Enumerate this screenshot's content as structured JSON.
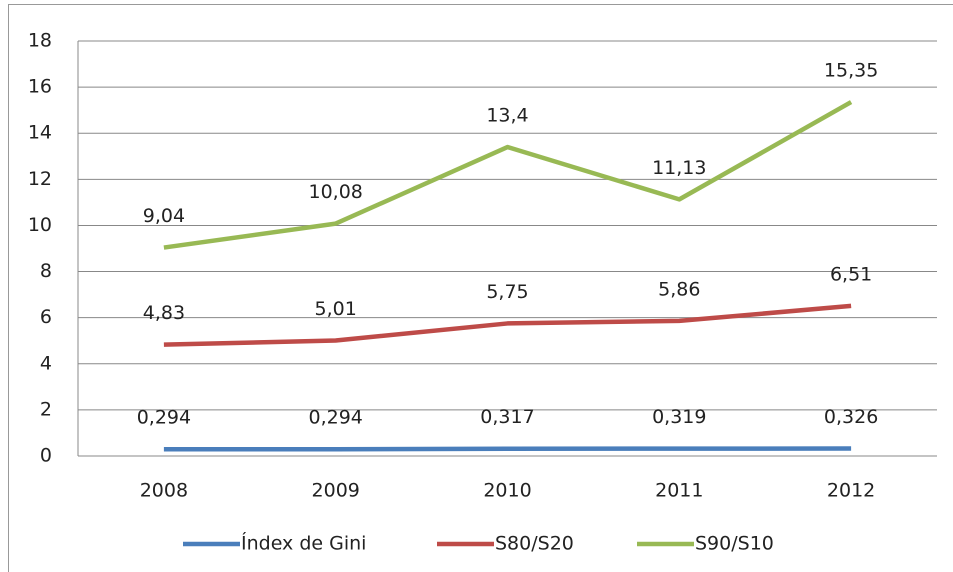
{
  "chart_data": {
    "type": "line",
    "categories": [
      "2008",
      "2009",
      "2010",
      "2011",
      "2012"
    ],
    "series": [
      {
        "name": "Índex de Gini",
        "color": "#4a7ebb",
        "values": [
          0.294,
          0.294,
          0.317,
          0.319,
          0.326
        ],
        "value_labels": [
          "0,294",
          "0,294",
          "0,317",
          "0,319",
          "0,326"
        ]
      },
      {
        "name": "S80/S20",
        "color": "#be4b48",
        "values": [
          4.83,
          5.01,
          5.75,
          5.86,
          6.51
        ],
        "value_labels": [
          "4,83",
          "5,01",
          "5,75",
          "5,86",
          "6,51"
        ]
      },
      {
        "name": "S90/S10",
        "color": "#98b954",
        "values": [
          9.04,
          10.08,
          13.4,
          11.13,
          15.35
        ],
        "value_labels": [
          "9,04",
          "10,08",
          "13,4",
          "11,13",
          "15,35"
        ]
      }
    ],
    "ylim": [
      0,
      18
    ],
    "yticks": [
      0,
      2,
      4,
      6,
      8,
      10,
      12,
      14,
      16,
      18
    ],
    "grid": true,
    "legend": "bottom"
  }
}
